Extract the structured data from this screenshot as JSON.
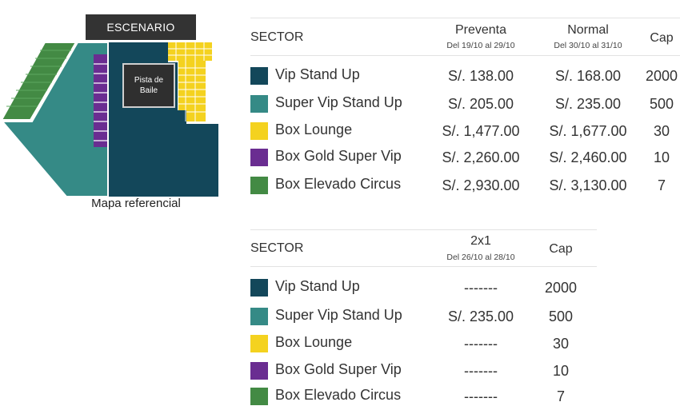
{
  "map": {
    "stage_label": "ESCENARIO",
    "dance_floor_label": "Pista de Baile",
    "caption": "Mapa referencial"
  },
  "colors": {
    "vip_stand_up": "#13475a",
    "super_vip_stand_up": "#358a86",
    "box_lounge": "#f4d21f",
    "box_gold_super_vip": "#6a2d91",
    "box_elevado_circus": "#438a44"
  },
  "table1": {
    "header": {
      "sector": "SECTOR",
      "preventa": "Preventa",
      "preventa_dates": "Del 19/10 al 29/10",
      "normal": "Normal",
      "normal_dates": "Del 30/10 al 31/10",
      "cap": "Cap"
    },
    "rows": [
      {
        "color": "#13475a",
        "sector": "Vip Stand Up",
        "preventa": "S/. 138.00",
        "normal": "S/. 168.00",
        "cap": "2000"
      },
      {
        "color": "#358a86",
        "sector": "Super Vip Stand Up",
        "preventa": "S/. 205.00",
        "normal": "S/. 235.00",
        "cap": "500"
      },
      {
        "color": "#f4d21f",
        "sector": "Box Lounge",
        "preventa": "S/. 1,477.00",
        "normal": "S/. 1,677.00",
        "cap": "30"
      },
      {
        "color": "#6a2d91",
        "sector": "Box Gold Super Vip",
        "preventa": "S/. 2,260.00",
        "normal": "S/. 2,460.00",
        "cap": "10"
      },
      {
        "color": "#438a44",
        "sector": "Box Elevado Circus",
        "preventa": "S/. 2,930.00",
        "normal": "S/. 3,130.00",
        "cap": "7"
      }
    ]
  },
  "table2": {
    "header": {
      "sector": "SECTOR",
      "promo": "2x1",
      "promo_dates": "Del 26/10 al 28/10",
      "cap": "Cap"
    },
    "rows": [
      {
        "color": "#13475a",
        "sector": "Vip Stand Up",
        "promo": "-------",
        "cap": "2000"
      },
      {
        "color": "#358a86",
        "sector": "Super Vip Stand Up",
        "promo": "S/. 235.00",
        "cap": "500"
      },
      {
        "color": "#f4d21f",
        "sector": "Box Lounge",
        "promo": "-------",
        "cap": "30"
      },
      {
        "color": "#6a2d91",
        "sector": "Box Gold Super Vip",
        "promo": "-------",
        "cap": "10"
      },
      {
        "color": "#438a44",
        "sector": "Box Elevado Circus",
        "promo": "-------",
        "cap": "7"
      }
    ]
  }
}
